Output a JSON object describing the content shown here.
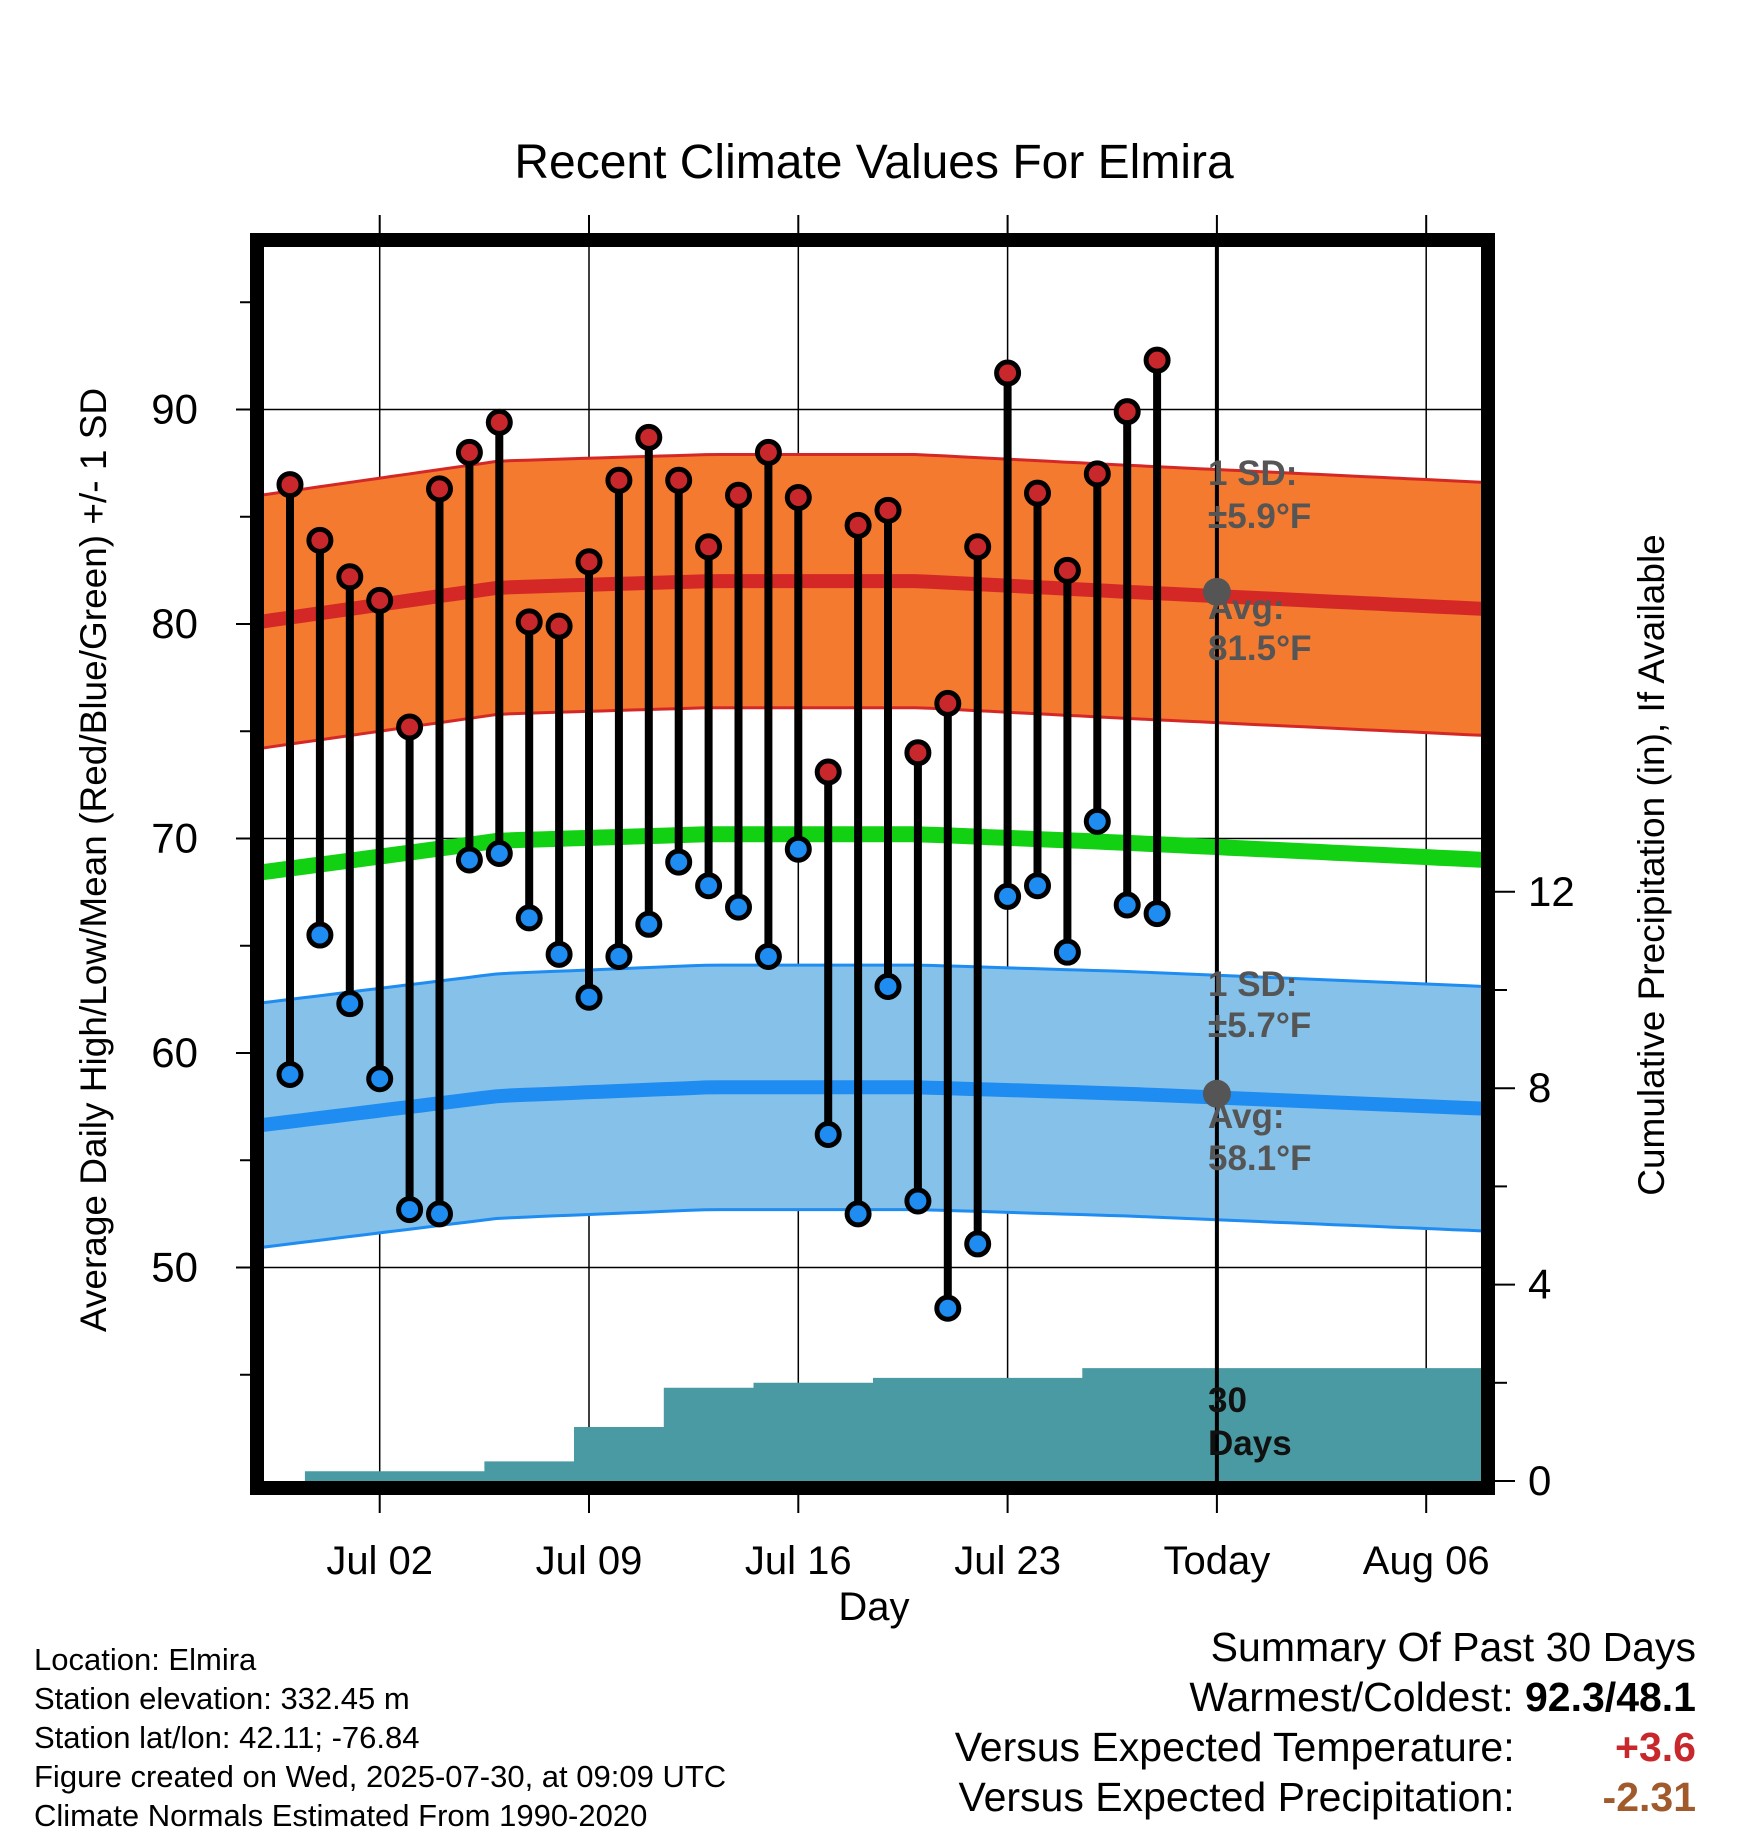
{
  "chart_data": {
    "type": "line",
    "title": "Recent Climate Values For Elmira",
    "xlabel": "Day",
    "ylabel": "Average Daily High/Low/Mean (Red/Blue/Green) +/- 1 SD",
    "y2label": "Cumulative Precipitation (in), If Available",
    "x_tick_labels": [
      "Jul 02",
      "Jul 09",
      "Jul 16",
      "Jul 23",
      "Today",
      "Aug 06"
    ],
    "y_ticks": [
      50,
      60,
      70,
      80,
      90
    ],
    "y2_ticks": [
      0,
      4,
      8,
      12
    ],
    "ylim": [
      40,
      97
    ],
    "y2lim": [
      0,
      24
    ],
    "days": [
      "Jun 29",
      "Jun 30",
      "Jul 01",
      "Jul 02",
      "Jul 03",
      "Jul 04",
      "Jul 05",
      "Jul 06",
      "Jul 07",
      "Jul 08",
      "Jul 09",
      "Jul 10",
      "Jul 11",
      "Jul 12",
      "Jul 13",
      "Jul 14",
      "Jul 15",
      "Jul 16",
      "Jul 17",
      "Jul 18",
      "Jul 19",
      "Jul 20",
      "Jul 21",
      "Jul 22",
      "Jul 23",
      "Jul 24",
      "Jul 25",
      "Jul 26",
      "Jul 27",
      "Jul 28",
      "Jul 29"
    ],
    "series": [
      {
        "name": "High",
        "color": "#c8282c",
        "values": [
          86.5,
          83.9,
          82.2,
          81.1,
          75.2,
          86.3,
          88.0,
          89.4,
          80.1,
          79.9,
          82.9,
          86.7,
          88.7,
          86.7,
          83.6,
          86.0,
          88.0,
          85.9,
          73.1,
          84.6,
          85.3,
          74.0,
          76.3,
          83.6,
          91.7,
          86.1,
          82.5,
          87.0,
          89.9,
          92.3
        ]
      },
      {
        "name": "Low",
        "color": "#1e8ce6",
        "values": [
          59.0,
          65.5,
          62.3,
          58.8,
          52.7,
          52.5,
          69.0,
          69.3,
          66.3,
          64.6,
          62.6,
          64.5,
          66.0,
          68.9,
          67.8,
          66.8,
          64.5,
          69.5,
          56.2,
          52.5,
          63.1,
          53.1,
          48.1,
          51.1,
          67.3,
          67.8,
          64.7,
          70.8,
          66.9,
          66.5
        ]
      },
      {
        "name": "Cumulative Precipitation",
        "color": "#4a9aa3",
        "values": [
          0.0,
          0.2,
          0.2,
          0.2,
          0.2,
          0.2,
          0.2,
          0.4,
          0.4,
          0.4,
          1.1,
          1.1,
          1.1,
          1.9,
          1.9,
          1.9,
          2.0,
          2.0,
          2.0,
          2.0,
          2.1,
          2.1,
          2.1,
          2.1,
          2.1,
          2.1,
          2.1,
          2.3,
          2.3,
          2.3,
          2.3
        ]
      }
    ],
    "normals": {
      "high_avg": [
        80.3,
        81.7,
        82.0,
        82.0,
        81.5,
        80.7
      ],
      "low_avg": [
        56.8,
        58.0,
        58.4,
        58.4,
        58.1,
        57.4
      ],
      "mean_avg": [
        68.6,
        69.9,
        70.2,
        70.2,
        69.8,
        69.0
      ],
      "high_sd": 5.9,
      "low_sd": 5.7,
      "normal_days": [
        "Jun 29",
        "Jul 06",
        "Jul 13",
        "Jul 20",
        "Jul 27",
        "Aug 08"
      ]
    },
    "annotations": {
      "high_sd_label": "1 SD:",
      "high_sd_value": "±5.9°F",
      "high_avg_label": "Avg:",
      "high_avg_value": "81.5°F",
      "low_sd_label": "1 SD:",
      "low_sd_value": "±5.7°F",
      "low_avg_label": "Avg:",
      "low_avg_value": "58.1°F",
      "precip_label_1": "30",
      "precip_label_2": "Days"
    },
    "colors": {
      "high_band": "#f47a30",
      "high_line": "#d42826",
      "low_band": "#85c1e8",
      "low_line": "#1e8cf0",
      "mean_line": "#12d012",
      "precip": "#4a9aa3"
    }
  },
  "info": {
    "location": "Location: Elmira",
    "elevation": "Station elevation: 332.45 m",
    "latlon": "Station lat/lon: 42.11; -76.84",
    "created": "Figure created on Wed, 2025-07-30, at 09:09 UTC",
    "normals": "Climate Normals Estimated From 1990-2020"
  },
  "summary": {
    "title": "Summary Of Past 30 Days",
    "warmest_label": "Warmest/Coldest:",
    "warmest_value": "92.3/48.1",
    "temp_label": "Versus Expected Temperature:",
    "temp_value": "+3.6",
    "precip_label": "Versus Expected Precipitation:",
    "precip_value": "-2.31"
  }
}
